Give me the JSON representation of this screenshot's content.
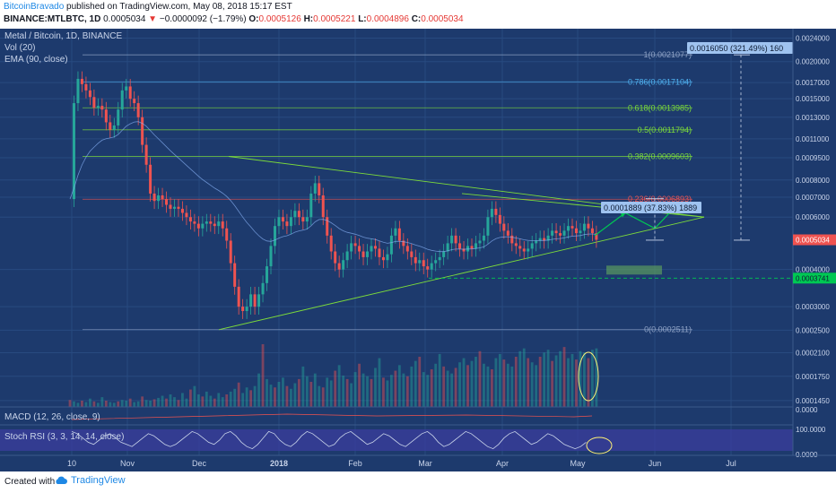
{
  "header": {
    "author": "BitcoinBravado",
    "published": "published on TradingView.com, May 08, 2018 15:17 EST",
    "symbol": "BINANCE:MTLBTC, 1D",
    "last": "0.0005034",
    "change_arrow": "▼",
    "change": "−0.0000092 (−1.79%)",
    "o_label": "O:",
    "o_value": "0.0005126",
    "h_label": "H:",
    "h_value": "0.0005221",
    "l_label": "L:",
    "l_value": "0.0004896",
    "c_label": "C:",
    "c_value": "0.0005034"
  },
  "legends": {
    "title": "Metal / Bitcoin, 1D, BINANCE",
    "vol": "Vol (20)",
    "ema": "EMA (90, close)",
    "macd": "MACD (12, 26, close, 9)",
    "stoch": "Stoch RSI (3, 3, 14, 14, close)"
  },
  "footer": {
    "made_with": "Created with",
    "brand": "TradingView"
  },
  "colors": {
    "background": "#1d3a6d",
    "up": "#26a69a",
    "down": "#ef5350",
    "fib_blue": "#4fb1ef",
    "fib_green": "#7ddc3a",
    "fib_red": "#ef5350",
    "fib_gray": "#8fa3c6",
    "highlight": "#00c853"
  },
  "chart_data": {
    "type": "candlestick",
    "main_price_axis": {
      "scale": "log",
      "labels": [
        "0.0024000",
        "0.0020000",
        "0.0017000",
        "0.0015000",
        "0.0013000",
        "0.0011000",
        "0.0009500",
        "0.0008000",
        "0.0007000",
        "0.0006000",
        "0.0004000",
        "0.0003000",
        "0.0002500",
        "0.0002100",
        "0.0001750",
        "0.0001450"
      ],
      "last_price_badge": "0.0005034",
      "marked_level_badge": "0.0003741"
    },
    "x_axis_labels": [
      "10",
      "Nov",
      "Dec",
      "2018",
      "Feb",
      "Mar",
      "Apr",
      "May",
      "Jun",
      "Jul"
    ],
    "fibonacci": [
      {
        "label": "1(0.0021077)",
        "value": 0.0021077,
        "color": "#8fa3c6"
      },
      {
        "label": "0.786(0.0017104)",
        "value": 0.0017104,
        "color": "#4fb1ef"
      },
      {
        "label": "0.618(0.0013985)",
        "value": 0.0013985,
        "color": "#7ddc3a"
      },
      {
        "label": "0.5(0.0011794)",
        "value": 0.0011794,
        "color": "#7ddc3a"
      },
      {
        "label": "0.382(0.0009603)",
        "value": 0.0009603,
        "color": "#7ddc3a"
      },
      {
        "label": "0.236(0.0006893)",
        "value": 0.0006893,
        "color": "#ef5350"
      },
      {
        "label": "0(0.0002511)",
        "value": 0.0002511,
        "color": "#8fa3c6"
      }
    ],
    "annotations": [
      {
        "text": "0.0016050 (321.49%) 160"
      },
      {
        "text": "0.0001889 (37.83%) 1889"
      }
    ],
    "price_path": [
      [
        0,
        0.00069
      ],
      [
        1,
        0.00145
      ],
      [
        2,
        0.00175
      ],
      [
        3,
        0.00168
      ],
      [
        4,
        0.0016
      ],
      [
        5,
        0.00152
      ],
      [
        6,
        0.0014
      ],
      [
        7,
        0.00142
      ],
      [
        8,
        0.00138
      ],
      [
        9,
        0.00125
      ],
      [
        10,
        0.00118
      ],
      [
        11,
        0.00122
      ],
      [
        12,
        0.00138
      ],
      [
        13,
        0.0016
      ],
      [
        14,
        0.00165
      ],
      [
        15,
        0.0015
      ],
      [
        16,
        0.00145
      ],
      [
        17,
        0.0013
      ],
      [
        18,
        0.00105
      ],
      [
        19,
        0.0009
      ],
      [
        20,
        0.00072
      ],
      [
        21,
        0.00068
      ],
      [
        22,
        0.00071
      ],
      [
        23,
        0.00069
      ],
      [
        24,
        0.00066
      ],
      [
        25,
        0.00064
      ],
      [
        26,
        0.00065
      ],
      [
        27,
        0.00064
      ],
      [
        28,
        0.00062
      ],
      [
        29,
        0.0006
      ],
      [
        30,
        0.00058
      ],
      [
        31,
        0.00057
      ],
      [
        32,
        0.00055
      ],
      [
        33,
        0.00057
      ],
      [
        34,
        0.00058
      ],
      [
        35,
        0.00057
      ],
      [
        36,
        0.00056
      ],
      [
        37,
        0.00058
      ],
      [
        38,
        0.00055
      ],
      [
        39,
        0.0005
      ],
      [
        40,
        0.00042
      ],
      [
        41,
        0.00035
      ],
      [
        42,
        0.0003
      ],
      [
        43,
        0.00029
      ],
      [
        44,
        0.0003
      ],
      [
        45,
        0.00033
      ],
      [
        46,
        0.0003
      ],
      [
        47,
        0.00033
      ],
      [
        48,
        0.00036
      ],
      [
        49,
        0.00041
      ],
      [
        50,
        0.00048
      ],
      [
        51,
        0.00056
      ],
      [
        52,
        0.0006
      ],
      [
        53,
        0.00058
      ],
      [
        54,
        0.00056
      ],
      [
        55,
        0.0006
      ],
      [
        56,
        0.00063
      ],
      [
        57,
        0.0006
      ],
      [
        58,
        0.00058
      ],
      [
        59,
        0.0006
      ],
      [
        60,
        0.00072
      ],
      [
        61,
        0.00078
      ],
      [
        62,
        0.00071
      ],
      [
        63,
        0.0006
      ],
      [
        64,
        0.00052
      ],
      [
        65,
        0.00046
      ],
      [
        66,
        0.00042
      ],
      [
        67,
        0.0004
      ],
      [
        68,
        0.00043
      ],
      [
        69,
        0.00046
      ],
      [
        70,
        0.00049
      ],
      [
        71,
        0.00048
      ],
      [
        72,
        0.00046
      ],
      [
        73,
        0.00044
      ],
      [
        74,
        0.00046
      ],
      [
        75,
        0.00048
      ],
      [
        76,
        0.00047
      ],
      [
        77,
        0.00044
      ],
      [
        78,
        0.00043
      ],
      [
        79,
        0.00045
      ],
      [
        80,
        0.00052
      ],
      [
        81,
        0.00055
      ],
      [
        82,
        0.0005
      ],
      [
        83,
        0.00048
      ],
      [
        84,
        0.00046
      ],
      [
        85,
        0.00044
      ],
      [
        86,
        0.00042
      ],
      [
        87,
        0.00043
      ],
      [
        88,
        0.00041
      ],
      [
        89,
        0.0004
      ],
      [
        90,
        0.00042
      ],
      [
        91,
        0.00043
      ],
      [
        92,
        0.00044
      ],
      [
        93,
        0.00046
      ],
      [
        94,
        0.00049
      ],
      [
        95,
        0.00052
      ],
      [
        96,
        0.00049
      ],
      [
        97,
        0.00047
      ],
      [
        98,
        0.00046
      ],
      [
        99,
        0.00048
      ],
      [
        100,
        0.00047
      ],
      [
        101,
        0.00049
      ],
      [
        102,
        0.0005
      ],
      [
        103,
        0.00052
      ],
      [
        104,
        0.0006
      ],
      [
        105,
        0.00064
      ],
      [
        106,
        0.00061
      ],
      [
        107,
        0.00057
      ],
      [
        108,
        0.00054
      ],
      [
        109,
        0.00052
      ],
      [
        110,
        0.00049
      ],
      [
        111,
        0.00048
      ],
      [
        112,
        0.00047
      ],
      [
        113,
        0.00046
      ],
      [
        114,
        0.00047
      ],
      [
        115,
        0.00049
      ],
      [
        116,
        0.0005
      ],
      [
        117,
        0.00051
      ],
      [
        118,
        0.0005
      ],
      [
        119,
        0.00052
      ],
      [
        120,
        0.00054
      ],
      [
        121,
        0.00053
      ],
      [
        122,
        0.00052
      ],
      [
        123,
        0.00054
      ],
      [
        124,
        0.00056
      ],
      [
        125,
        0.00055
      ],
      [
        126,
        0.00053
      ],
      [
        127,
        0.00054
      ],
      [
        128,
        0.00057
      ],
      [
        129,
        0.00055
      ],
      [
        130,
        0.00053
      ],
      [
        131,
        0.0005034
      ]
    ],
    "volume_pattern": [
      10,
      8,
      6,
      9,
      7,
      12,
      8,
      6,
      14,
      9,
      7,
      6,
      8,
      10,
      9,
      12,
      7,
      8,
      15,
      10,
      9,
      11,
      13,
      16,
      12,
      18,
      14,
      10,
      20,
      12,
      25,
      30,
      18,
      15,
      22,
      16,
      12,
      20,
      14,
      18,
      22,
      26,
      35,
      20,
      28,
      24,
      30,
      48,
      90,
      40,
      32,
      28,
      36,
      42,
      30,
      26,
      34,
      40,
      58,
      44,
      36,
      48,
      30,
      28,
      42,
      38,
      52,
      60,
      45,
      40,
      34,
      50,
      62,
      48,
      44,
      40,
      56,
      70,
      42,
      38,
      46,
      52,
      60,
      48,
      44,
      58,
      66,
      72,
      50,
      46,
      54,
      62,
      76,
      58,
      52,
      48,
      56,
      64,
      70,
      60,
      66,
      72,
      80,
      62,
      58,
      54,
      70,
      76,
      68,
      62,
      58,
      72,
      80,
      84,
      70,
      64,
      60,
      72,
      78,
      82,
      66,
      74,
      80,
      86,
      70,
      76,
      68,
      80,
      78,
      70,
      82,
      84
    ],
    "stoch_k": [
      0.9,
      0.8,
      0.6,
      0.4,
      0.3,
      0.5,
      0.7,
      0.8,
      0.6,
      0.4,
      0.3,
      0.2,
      0.4,
      0.6,
      0.8,
      0.7,
      0.5,
      0.3,
      0.2,
      0.3,
      0.5,
      0.7,
      0.9,
      0.8,
      0.6,
      0.4,
      0.3,
      0.5,
      0.8,
      0.9,
      0.7,
      0.4,
      0.2,
      0.1,
      0.3,
      0.6,
      0.9,
      0.8,
      0.5,
      0.3,
      0.2,
      0.4,
      0.7,
      0.9,
      0.8,
      0.6,
      0.4,
      0.2,
      0.3,
      0.6,
      0.8,
      0.9,
      0.7,
      0.5,
      0.3,
      0.4,
      0.6,
      0.8,
      0.7,
      0.5,
      0.3,
      0.2,
      0.4,
      0.6,
      0.8,
      0.9,
      0.7,
      0.4,
      0.2,
      0.3,
      0.5,
      0.7,
      0.9,
      0.8,
      0.6,
      0.4,
      0.2,
      0.1,
      0.3,
      0.6,
      0.8,
      0.9,
      0.7,
      0.5,
      0.3,
      0.4,
      0.6,
      0.8,
      0.7,
      0.5,
      0.3,
      0.2,
      0.1,
      0.2,
      0.4
    ]
  }
}
